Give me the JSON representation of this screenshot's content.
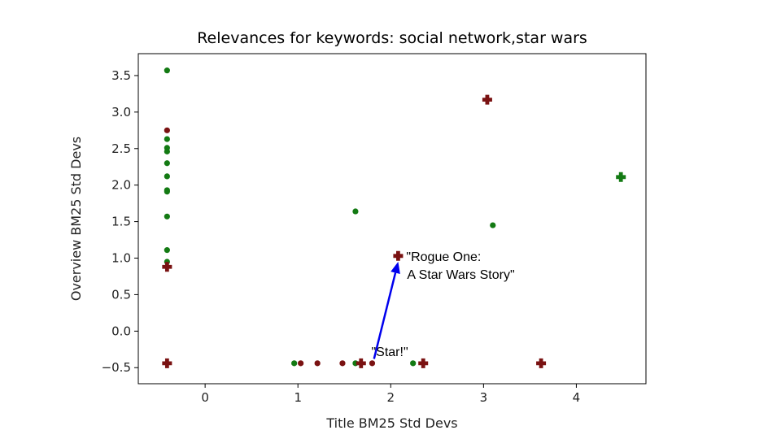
{
  "chart_data": {
    "type": "scatter",
    "title": "Relevances for keywords: social network,star wars",
    "xlabel": "Title BM25 Std Devs",
    "ylabel": "Overview BM25 Std Devs",
    "xlim": [
      -0.72,
      4.75
    ],
    "ylim": [
      -0.72,
      3.8
    ],
    "xticks": [
      0,
      1,
      2,
      3,
      4
    ],
    "xtick_labels": [
      "0",
      "1",
      "2",
      "3",
      "4"
    ],
    "yticks": [
      -0.5,
      0.0,
      0.5,
      1.0,
      1.5,
      2.0,
      2.5,
      3.0,
      3.5
    ],
    "ytick_labels": [
      "−0.5",
      "0.0",
      "0.5",
      "1.0",
      "1.5",
      "2.0",
      "2.5",
      "3.0",
      "3.5"
    ],
    "colors": {
      "green": "#137a13",
      "red": "#7a1212",
      "arrow": "#0000ee"
    },
    "series": [
      {
        "name": "green dots",
        "marker": "dot",
        "color": "green",
        "points": [
          [
            -0.41,
            3.57
          ],
          [
            -0.41,
            2.63
          ],
          [
            -0.41,
            2.51
          ],
          [
            -0.41,
            2.46
          ],
          [
            -0.41,
            2.3
          ],
          [
            -0.41,
            2.12
          ],
          [
            -0.41,
            1.93
          ],
          [
            -0.41,
            1.91
          ],
          [
            -0.41,
            1.57
          ],
          [
            -0.41,
            1.11
          ],
          [
            -0.41,
            0.95
          ],
          [
            1.62,
            1.64
          ],
          [
            3.1,
            1.45
          ],
          [
            0.96,
            -0.44
          ],
          [
            1.62,
            -0.44
          ],
          [
            2.24,
            -0.44
          ]
        ]
      },
      {
        "name": "red dots",
        "marker": "dot",
        "color": "red",
        "points": [
          [
            -0.41,
            2.75
          ],
          [
            1.03,
            -0.44
          ],
          [
            1.21,
            -0.44
          ],
          [
            1.48,
            -0.44
          ],
          [
            1.8,
            -0.44
          ]
        ]
      },
      {
        "name": "green plus",
        "marker": "plus",
        "color": "green",
        "points": [
          [
            4.48,
            2.11
          ]
        ]
      },
      {
        "name": "red plus",
        "marker": "plus",
        "color": "red",
        "points": [
          [
            -0.41,
            0.88
          ],
          [
            -0.41,
            -0.44
          ],
          [
            1.68,
            -0.44
          ],
          [
            2.35,
            -0.44
          ],
          [
            3.04,
            3.17
          ],
          [
            3.62,
            -0.44
          ],
          [
            2.08,
            1.03
          ]
        ]
      }
    ],
    "annotations": [
      {
        "text_lines": [
          "\"Rogue One:",
          "A Star  Wars Story\""
        ],
        "x": 2.08,
        "y": 1.03
      },
      {
        "text_lines": [
          "\"Star!\""
        ],
        "x": 1.8,
        "y": -0.44
      }
    ],
    "arrow": {
      "from": [
        1.82,
        -0.38
      ],
      "to": [
        2.08,
        0.95
      ]
    }
  }
}
